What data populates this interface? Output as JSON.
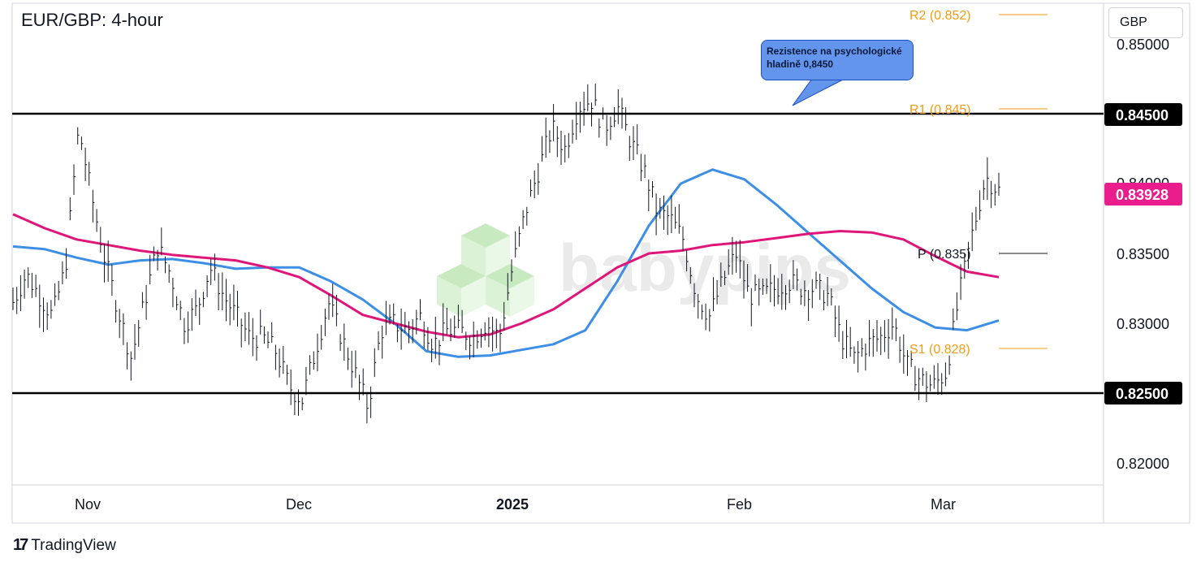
{
  "chart_title": "EUR/GBP: 4-hour",
  "currency": "GBP",
  "watermark": "babypips",
  "brand": "TradingView",
  "annotation": "Rezistence na psychologické hladině 0,8450",
  "colors": {
    "candles": "#131722",
    "ma_fast": "#3d8fe6",
    "ma_slow": "#e0157a",
    "pivot_orange": "#f39c12",
    "current_price_bg": "#e91e8c",
    "callout_bg": "#6495ed",
    "watermark_green": "#a8e6a0"
  },
  "chart_data": {
    "type": "line",
    "title": "EUR/GBP: 4-hour",
    "x_tick_labels": [
      "Nov",
      "Dec",
      "2025",
      "Feb",
      "Mar"
    ],
    "y_tick_labels": [
      "0.85000",
      "0.84000",
      "0.83500",
      "0.83000",
      "0.82000"
    ],
    "ylim": [
      0.8195,
      0.8575
    ],
    "grid": false,
    "horizontal_levels": [
      {
        "label": "0.84500",
        "value": 0.845,
        "style": "black"
      },
      {
        "label": "0.82500",
        "value": 0.825,
        "style": "black"
      }
    ],
    "current_price": {
      "label": "0.83928",
      "value": 0.83928
    },
    "pivots": [
      {
        "label": "R2 (0.852)",
        "value": 0.852,
        "color": "orange"
      },
      {
        "label": "R1 (0.845)",
        "value": 0.845,
        "color": "orange"
      },
      {
        "label": "P (0.835)",
        "value": 0.835,
        "color": "black"
      },
      {
        "label": "S1 (0.828)",
        "value": 0.828,
        "color": "orange"
      }
    ],
    "price_path": [
      0.8315,
      0.8335,
      0.832,
      0.8305,
      0.834,
      0.844,
      0.839,
      0.8345,
      0.831,
      0.8275,
      0.8315,
      0.8355,
      0.8335,
      0.83,
      0.831,
      0.834,
      0.832,
      0.8305,
      0.829,
      0.829,
      0.828,
      0.8255,
      0.8245,
      0.828,
      0.8315,
      0.829,
      0.8265,
      0.824,
      0.8295,
      0.83,
      0.8295,
      0.8305,
      0.8285,
      0.8295,
      0.8295,
      0.829,
      0.83,
      0.829,
      0.834,
      0.838,
      0.841,
      0.844,
      0.8425,
      0.8455,
      0.846,
      0.844,
      0.8455,
      0.843,
      0.841,
      0.838,
      0.8375,
      0.836,
      0.832,
      0.8305,
      0.833,
      0.835,
      0.832,
      0.832,
      0.8325,
      0.833,
      0.8325,
      0.8325,
      0.832,
      0.829,
      0.8275,
      0.8285,
      0.829,
      0.83,
      0.827,
      0.826,
      0.8255,
      0.8265,
      0.832,
      0.8365,
      0.8405,
      0.8395
    ],
    "series": [
      {
        "values": [
          0.8355,
          0.8353,
          0.8347,
          0.8342,
          0.8345,
          0.8346,
          0.8343,
          0.8339,
          0.834,
          0.834,
          0.833,
          0.8317,
          0.83,
          0.828,
          0.8276,
          0.8277,
          0.8281,
          0.8285,
          0.8295,
          0.833,
          0.837,
          0.84,
          0.841,
          0.8403,
          0.8385,
          0.8365,
          0.8345,
          0.8325,
          0.8308,
          0.8297,
          0.8295,
          0.8302
        ],
        "color": "blue"
      },
      {
        "values": [
          0.8378,
          0.8368,
          0.836,
          0.8356,
          0.8352,
          0.8349,
          0.8347,
          0.8345,
          0.834,
          0.8333,
          0.832,
          0.8306,
          0.83,
          0.8294,
          0.829,
          0.8292,
          0.83,
          0.831,
          0.8325,
          0.834,
          0.835,
          0.8352,
          0.8356,
          0.8358,
          0.8361,
          0.8364,
          0.8366,
          0.8365,
          0.836,
          0.8348,
          0.8337,
          0.8333
        ],
        "color": "pink"
      }
    ]
  }
}
